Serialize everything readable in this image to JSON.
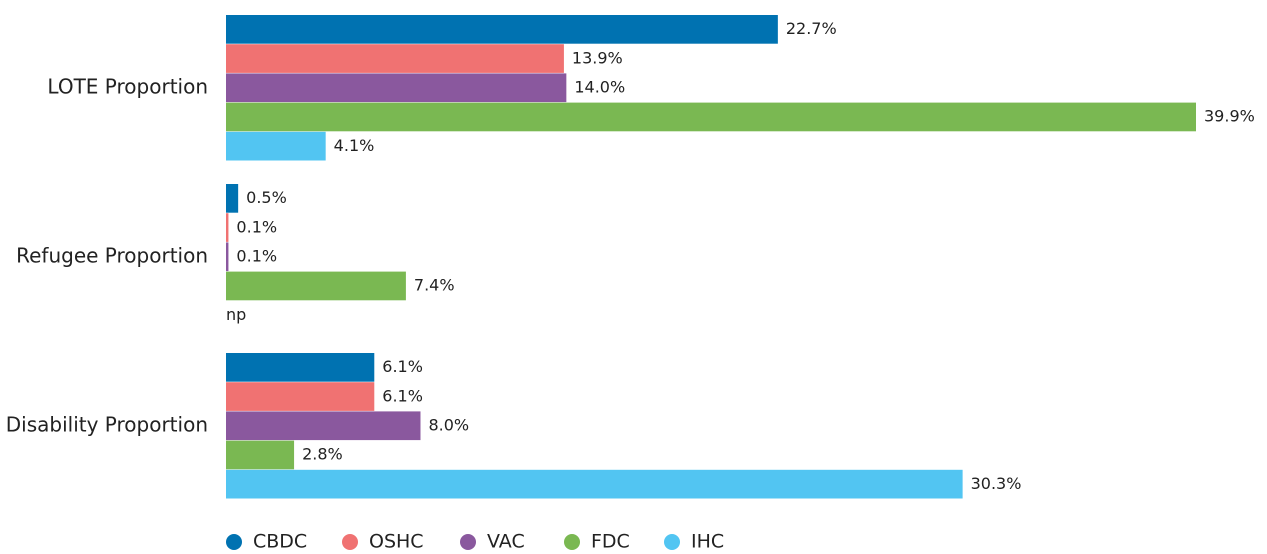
{
  "chart_data": {
    "type": "bar",
    "orientation": "horizontal",
    "categories": [
      "LOTE Proportion",
      "Refugee Proportion",
      "Disability Proportion"
    ],
    "series": [
      {
        "name": "CBDC",
        "color": "#0072b1",
        "values": [
          22.7,
          0.5,
          6.1
        ],
        "value_labels": [
          "22.7%",
          "0.5%",
          "6.1%"
        ]
      },
      {
        "name": "OSHC",
        "color": "#f07272",
        "values": [
          13.9,
          0.1,
          6.1
        ],
        "value_labels": [
          "13.9%",
          "0.1%",
          "6.1%"
        ]
      },
      {
        "name": "VAC",
        "color": "#8a589e",
        "values": [
          14.0,
          0.1,
          8.0
        ],
        "value_labels": [
          "14.0%",
          "0.1%",
          "8.0%"
        ]
      },
      {
        "name": "FDC",
        "color": "#7ab852",
        "values": [
          39.9,
          7.4,
          2.8
        ],
        "value_labels": [
          "39.9%",
          "7.4%",
          "2.8%"
        ]
      },
      {
        "name": "IHC",
        "color": "#52c5f2",
        "values": [
          4.1,
          null,
          30.3
        ],
        "value_labels": [
          "4.1%",
          "np",
          "30.3%"
        ]
      }
    ],
    "legend": "bottom"
  }
}
